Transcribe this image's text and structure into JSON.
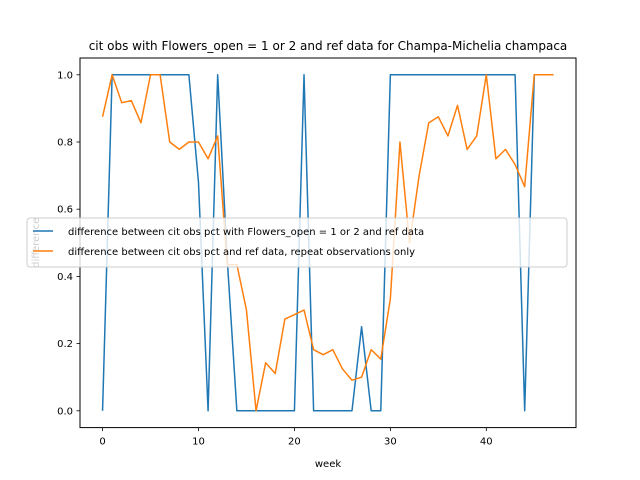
{
  "chart_data": {
    "type": "line",
    "title": "cit obs with Flowers_open = 1 or 2 and ref data for Champa-Michelia champaca",
    "xlabel": "week",
    "ylabel": "difference",
    "xlim": [
      -2.35,
      49.35
    ],
    "ylim": [
      -0.05,
      1.05
    ],
    "xticks": [
      0,
      10,
      20,
      30,
      40
    ],
    "yticks": [
      0.0,
      0.2,
      0.4,
      0.6,
      0.8,
      1.0
    ],
    "grid": false,
    "legend_placement": "center-left",
    "series": [
      {
        "name": "difference between cit obs pct with Flowers_open = 1 or 2 and ref data",
        "color": "#1f77b4",
        "x": [
          0,
          1,
          2,
          3,
          4,
          5,
          6,
          7,
          8,
          9,
          10,
          11,
          12,
          13,
          14,
          15,
          16,
          17,
          18,
          19,
          20,
          21,
          22,
          23,
          24,
          25,
          26,
          27,
          28,
          29,
          30,
          31,
          32,
          33,
          34,
          35,
          36,
          37,
          38,
          39,
          40,
          41,
          42,
          43,
          44,
          45,
          46,
          47
        ],
        "y": [
          0,
          1,
          1,
          1,
          1,
          1,
          1,
          1,
          1,
          1,
          0.68,
          0,
          1,
          0.45,
          0,
          0,
          0,
          0,
          0,
          0,
          0,
          1,
          0,
          0,
          0,
          0,
          0,
          0.25,
          0,
          0,
          1,
          1,
          1,
          1,
          1,
          1,
          1,
          1,
          1,
          1,
          1,
          1,
          1,
          1,
          0,
          1,
          1,
          1
        ]
      },
      {
        "name": "difference between cit obs pct and ref data, repeat observations only",
        "color": "#ff7f0e",
        "x": [
          0,
          1,
          2,
          3,
          4,
          5,
          6,
          7,
          8,
          9,
          10,
          11,
          12,
          13,
          14,
          15,
          16,
          17,
          18,
          19,
          20,
          21,
          22,
          23,
          24,
          25,
          26,
          27,
          28,
          29,
          30,
          31,
          32,
          33,
          34,
          35,
          36,
          37,
          38,
          39,
          40,
          41,
          42,
          43,
          44,
          45,
          46,
          47
        ],
        "y": [
          0.875,
          1,
          0.917,
          0.923,
          0.857,
          1,
          1,
          0.8,
          0.778,
          0.8,
          0.8,
          0.75,
          0.818,
          0.435,
          0.435,
          0.3,
          0,
          0.143,
          0.111,
          0.273,
          0.286,
          0.3,
          0.182,
          0.167,
          0.182,
          0.125,
          0.091,
          0.1,
          0.182,
          0.154,
          0.333,
          0.8,
          0.5,
          0.7,
          0.857,
          0.875,
          0.818,
          0.909,
          0.778,
          0.818,
          1,
          0.75,
          0.778,
          0.733,
          0.667,
          1,
          1,
          1
        ]
      }
    ]
  }
}
